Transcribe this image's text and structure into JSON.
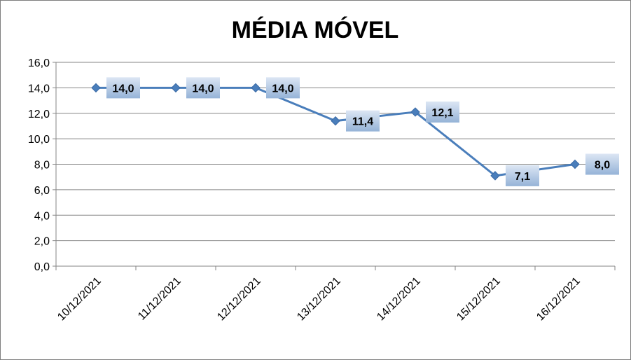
{
  "chart_data": {
    "type": "line",
    "title": "MÉDIA MÓVEL",
    "categories": [
      "10/12/2021",
      "11/12/2021",
      "12/12/2021",
      "13/12/2021",
      "14/12/2021",
      "15/12/2021",
      "16/12/2021"
    ],
    "series": [
      {
        "values": [
          14.0,
          14.0,
          14.0,
          11.4,
          12.1,
          7.1,
          8.0
        ],
        "labels": [
          "14,0",
          "14,0",
          "14,0",
          "11,4",
          "12,1",
          "7,1",
          "8,0"
        ],
        "color": "#4a7ebb"
      }
    ],
    "yticks": [
      "0,0",
      "2,0",
      "4,0",
      "6,0",
      "8,0",
      "10,0",
      "12,0",
      "14,0",
      "16,0"
    ],
    "ylim": [
      0,
      16
    ],
    "xlabel": "",
    "ylabel": "",
    "grid": true,
    "legend": "none",
    "colors": {
      "line": "#4a7ebb",
      "gridline": "#868686",
      "label_bg_top": "#dce6f4",
      "label_bg_bottom": "#95b3d7"
    }
  }
}
